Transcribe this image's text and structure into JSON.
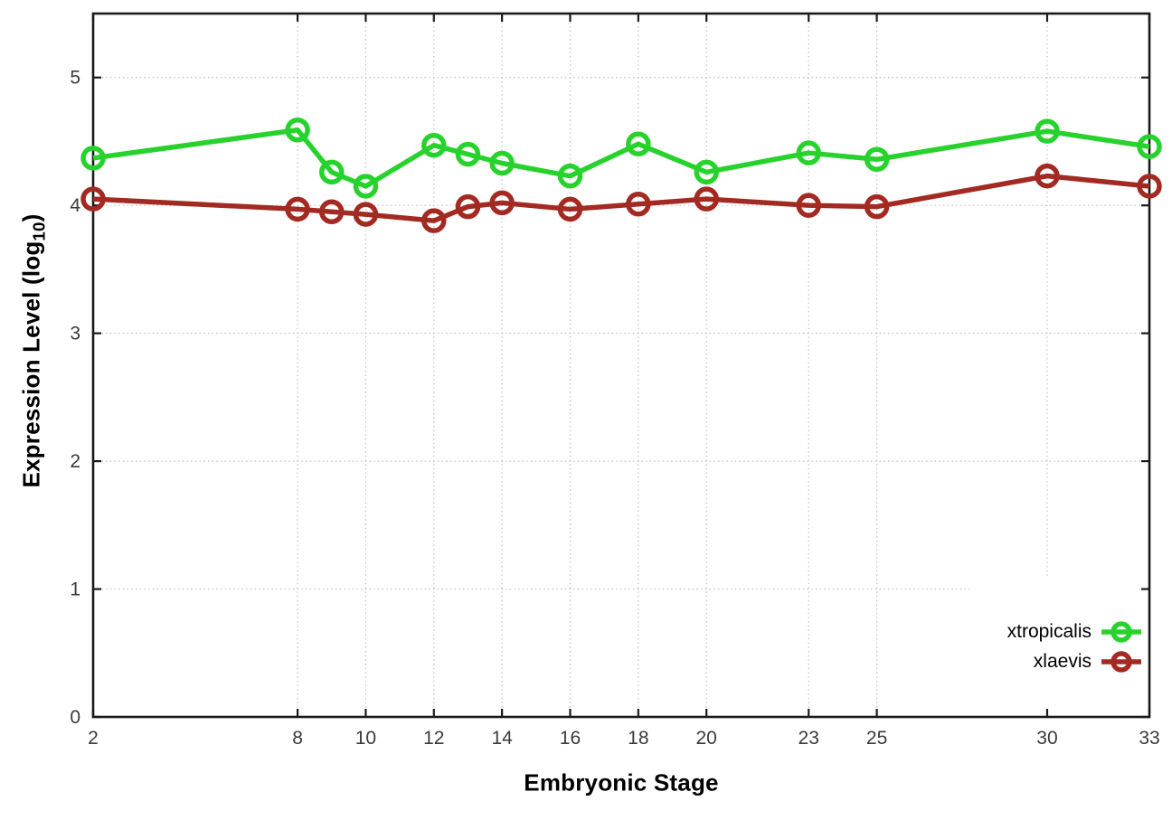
{
  "figure": {
    "xlabel": "Embryonic Stage",
    "ylabel_pre": "Expression Level (log",
    "ylabel_sub": "10",
    "ylabel_post": ")"
  },
  "chart_data": {
    "type": "line",
    "title": "",
    "xlabel": "Embryonic Stage",
    "ylabel": "Expression Level (log10)",
    "x": [
      2,
      8,
      9,
      10,
      12,
      13,
      14,
      16,
      18,
      20,
      23,
      25,
      30,
      33
    ],
    "series": [
      {
        "name": "xtropicalis",
        "color": "#28d22d",
        "marker": "open-circle",
        "values": [
          4.37,
          4.59,
          4.26,
          4.15,
          4.47,
          4.4,
          4.33,
          4.23,
          4.48,
          4.26,
          4.41,
          4.36,
          4.58,
          4.46
        ]
      },
      {
        "name": "xlaevis",
        "color": "#a32a22",
        "marker": "open-circle",
        "values": [
          4.05,
          3.97,
          3.95,
          3.93,
          3.88,
          3.99,
          4.02,
          3.97,
          4.01,
          4.05,
          4.0,
          3.99,
          4.23,
          4.15
        ]
      }
    ],
    "xticks": [
      2,
      8,
      10,
      12,
      14,
      16,
      18,
      20,
      23,
      25,
      30,
      33
    ],
    "yticks": [
      0,
      1,
      2,
      3,
      4,
      5
    ],
    "xlim": [
      2,
      33
    ],
    "ylim": [
      0,
      5.5
    ],
    "grid": true,
    "grid_style": "dotted",
    "legend_position": "inside-bottom-right",
    "colors": {
      "grid": "#bfbfbf",
      "axis": "#1a1a1a",
      "tick_label": "#3a3a3a",
      "title": "#000000",
      "background": "#ffffff"
    }
  }
}
